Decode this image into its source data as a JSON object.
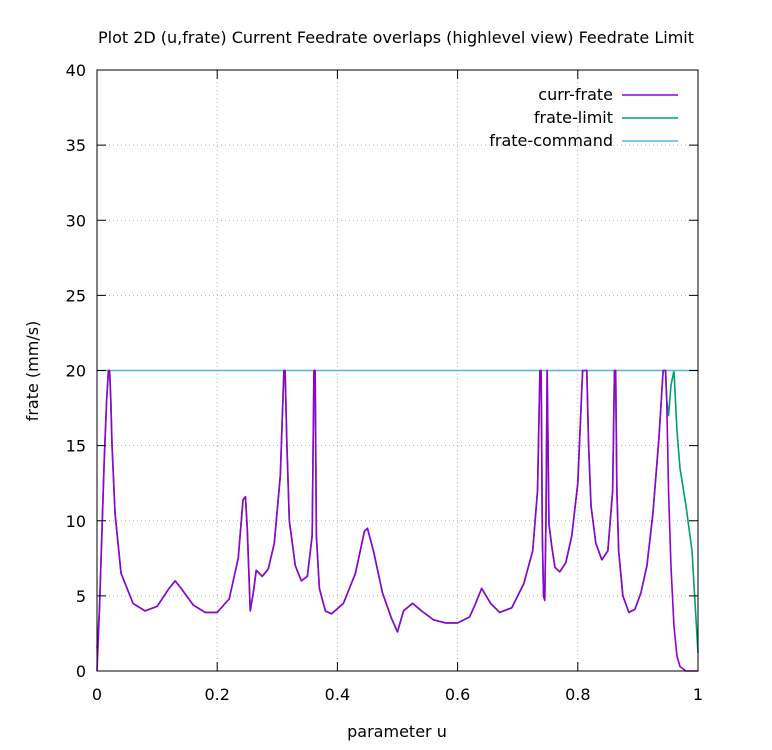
{
  "chart_data": {
    "type": "line",
    "title": "Plot 2D (u,frate) Current Feedrate overlaps (highlevel view) Feedrate Limit",
    "xlabel": "parameter u",
    "ylabel": "frate (mm/s)",
    "xlim": [
      0,
      1
    ],
    "ylim": [
      0,
      40
    ],
    "xticks": [
      "0",
      "0.2",
      "0.4",
      "0.6",
      "0.8",
      "1"
    ],
    "xtick_values": [
      0,
      0.2,
      0.4,
      0.6,
      0.8,
      1
    ],
    "yticks": [
      "0",
      "5",
      "10",
      "15",
      "20",
      "25",
      "30",
      "35",
      "40"
    ],
    "ytick_values": [
      0,
      5,
      10,
      15,
      20,
      25,
      30,
      35,
      40
    ],
    "grid": true,
    "legend_position": "top-right",
    "series": [
      {
        "name": "curr-frate",
        "color": "#9400d3",
        "x": [
          0,
          0.004,
          0.008,
          0.012,
          0.016,
          0.019,
          0.021,
          0.023,
          0.025,
          0.03,
          0.04,
          0.06,
          0.08,
          0.1,
          0.12,
          0.13,
          0.14,
          0.16,
          0.18,
          0.2,
          0.22,
          0.235,
          0.243,
          0.247,
          0.25,
          0.255,
          0.26,
          0.265,
          0.275,
          0.285,
          0.295,
          0.305,
          0.311,
          0.313,
          0.316,
          0.32,
          0.33,
          0.34,
          0.35,
          0.358,
          0.361,
          0.363,
          0.365,
          0.37,
          0.38,
          0.39,
          0.41,
          0.43,
          0.445,
          0.45,
          0.46,
          0.475,
          0.49,
          0.5,
          0.51,
          0.525,
          0.54,
          0.56,
          0.58,
          0.6,
          0.62,
          0.63,
          0.64,
          0.655,
          0.67,
          0.69,
          0.71,
          0.725,
          0.733,
          0.737,
          0.739,
          0.741,
          0.743,
          0.745,
          0.747,
          0.749,
          0.752,
          0.757,
          0.762,
          0.77,
          0.78,
          0.79,
          0.8,
          0.808,
          0.812,
          0.815,
          0.818,
          0.822,
          0.83,
          0.84,
          0.85,
          0.858,
          0.861,
          0.863,
          0.865,
          0.868,
          0.875,
          0.885,
          0.895,
          0.905,
          0.915,
          0.925,
          0.935,
          0.942,
          0.946,
          0.948,
          0.951,
          0.955,
          0.96,
          0.965,
          0.97,
          0.98,
          0.99,
          1.0
        ],
        "y": [
          0,
          4,
          9,
          14,
          18,
          20,
          20,
          18,
          15,
          10.5,
          6.5,
          4.5,
          4.0,
          4.3,
          5.5,
          6.0,
          5.5,
          4.4,
          3.9,
          3.9,
          4.8,
          7.5,
          11.4,
          11.6,
          9.5,
          4.0,
          5.2,
          6.7,
          6.3,
          6.8,
          8.5,
          13,
          20,
          20,
          15,
          10,
          7,
          6.0,
          6.3,
          9,
          20,
          20,
          9,
          5.5,
          4.0,
          3.8,
          4.5,
          6.5,
          9.3,
          9.5,
          8.0,
          5.2,
          3.5,
          2.6,
          4.0,
          4.5,
          4.0,
          3.4,
          3.2,
          3.2,
          3.6,
          4.5,
          5.5,
          4.5,
          3.9,
          4.2,
          5.8,
          8.0,
          12,
          20,
          20,
          9,
          5,
          4.7,
          10,
          20,
          9.8,
          8.2,
          6.9,
          6.6,
          7.2,
          9.0,
          12.5,
          20,
          20,
          20,
          15,
          11,
          8.5,
          7.4,
          8.0,
          12,
          20,
          20,
          12,
          8,
          5.0,
          3.9,
          4.1,
          5.2,
          7.0,
          10.5,
          15.5,
          20,
          20,
          18,
          12,
          7,
          3,
          1.0,
          0.3,
          0,
          0,
          0
        ]
      },
      {
        "name": "frate-limit",
        "color": "#009e73",
        "x": [
          0,
          0.004,
          0.008,
          0.012,
          0.016,
          0.019,
          0.021,
          0.023,
          0.025,
          0.03,
          0.04,
          0.06,
          0.08,
          0.1,
          0.12,
          0.13,
          0.14,
          0.16,
          0.18,
          0.2,
          0.22,
          0.235,
          0.243,
          0.247,
          0.25,
          0.255,
          0.26,
          0.265,
          0.275,
          0.285,
          0.295,
          0.305,
          0.311,
          0.313,
          0.316,
          0.32,
          0.33,
          0.34,
          0.35,
          0.358,
          0.361,
          0.363,
          0.365,
          0.37,
          0.38,
          0.39,
          0.41,
          0.43,
          0.445,
          0.45,
          0.46,
          0.475,
          0.49,
          0.5,
          0.51,
          0.525,
          0.54,
          0.56,
          0.58,
          0.6,
          0.62,
          0.63,
          0.64,
          0.655,
          0.67,
          0.69,
          0.71,
          0.725,
          0.733,
          0.737,
          0.739,
          0.741,
          0.743,
          0.745,
          0.747,
          0.749,
          0.752,
          0.757,
          0.762,
          0.77,
          0.78,
          0.79,
          0.8,
          0.808,
          0.812,
          0.815,
          0.818,
          0.822,
          0.83,
          0.84,
          0.85,
          0.858,
          0.861,
          0.863,
          0.865,
          0.868,
          0.875,
          0.885,
          0.895,
          0.905,
          0.915,
          0.925,
          0.935,
          0.942,
          0.946,
          0.948,
          0.951,
          0.955,
          0.96,
          0.965,
          0.97,
          0.98,
          0.99,
          1.0
        ],
        "y": [
          1.5,
          4,
          9,
          14,
          18,
          20,
          20,
          18,
          15,
          10.5,
          6.5,
          4.5,
          4.0,
          4.3,
          5.5,
          6.0,
          5.5,
          4.4,
          3.9,
          3.9,
          4.8,
          7.5,
          11.4,
          11.6,
          9.5,
          4.0,
          5.2,
          6.7,
          6.3,
          6.8,
          8.5,
          13,
          20,
          20,
          15,
          10,
          7,
          6.0,
          6.3,
          9,
          20,
          20,
          9,
          5.5,
          4.0,
          3.8,
          4.5,
          6.5,
          9.3,
          9.5,
          8.0,
          5.2,
          3.5,
          2.6,
          4.0,
          4.5,
          4.0,
          3.4,
          3.2,
          3.2,
          3.6,
          4.5,
          5.5,
          4.5,
          3.9,
          4.2,
          5.8,
          8.0,
          12,
          20,
          20,
          9,
          5,
          4.7,
          10,
          20,
          9.8,
          8.2,
          6.9,
          6.6,
          7.2,
          9.0,
          12.5,
          20,
          20,
          20,
          15,
          11,
          8.5,
          7.4,
          8.0,
          12,
          20,
          20,
          12,
          8,
          5.0,
          3.9,
          4.1,
          5.2,
          7.0,
          10.5,
          15.5,
          20,
          20,
          18,
          17,
          19,
          20,
          16,
          13.5,
          11,
          8,
          1.2
        ]
      },
      {
        "name": "frate-command",
        "color": "#56b4e9",
        "x": [
          0,
          1
        ],
        "y": [
          20,
          20
        ]
      }
    ]
  }
}
